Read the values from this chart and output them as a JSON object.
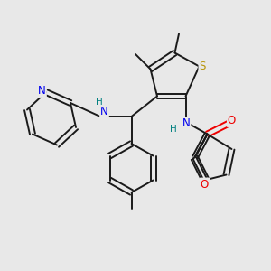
{
  "bg_color": "#e8e8e8",
  "bond_color": "#1a1a1a",
  "N_color": "#0000ee",
  "S_color": "#b8960c",
  "O_color": "#ee0000",
  "NH_color": "#008080",
  "figsize": [
    3.0,
    3.0
  ],
  "dpi": 100,
  "xlim": [
    0,
    10
  ],
  "ylim": [
    0,
    10
  ]
}
